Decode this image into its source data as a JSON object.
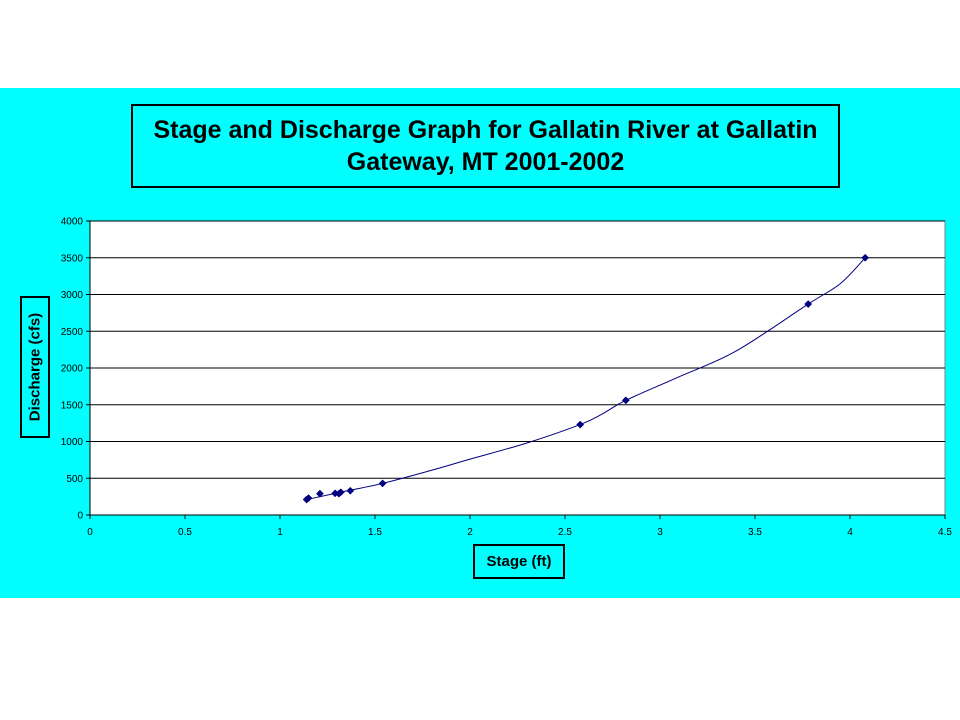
{
  "chart_data": {
    "type": "scatter",
    "title": "Stage and Discharge Graph for Gallatin River at Gallatin Gateway, MT 2001-2002",
    "xlabel": "Stage (ft)",
    "ylabel": "Discharge (cfs)",
    "xlim": [
      0,
      4.5
    ],
    "ylim": [
      0,
      4000
    ],
    "x_ticks": [
      "0",
      "0.5",
      "1",
      "1.5",
      "2",
      "2.5",
      "3",
      "3.5",
      "4",
      "4.5"
    ],
    "y_ticks": [
      "0",
      "500",
      "1000",
      "1500",
      "2000",
      "2500",
      "3000",
      "3500",
      "4000"
    ],
    "grid": "horizontal",
    "legend": "none",
    "series": [
      {
        "marker": "diamond",
        "color": "#000080",
        "x": [
          1.14,
          1.15,
          1.21,
          1.29,
          1.31,
          1.32,
          1.37,
          1.54,
          2.58,
          2.82,
          3.78,
          4.08
        ],
        "y": [
          210,
          230,
          290,
          295,
          290,
          310,
          330,
          430,
          1230,
          1560,
          2870,
          3500
        ]
      }
    ],
    "trendline": {
      "color": "#000080",
      "x": [
        1.14,
        1.3,
        1.54,
        1.8,
        2.0,
        2.3,
        2.58,
        2.7,
        2.82,
        3.1,
        3.4,
        3.78,
        3.95,
        4.08
      ],
      "y": [
        210,
        300,
        430,
        610,
        760,
        980,
        1230,
        1380,
        1560,
        1880,
        2230,
        2870,
        3150,
        3500
      ]
    }
  }
}
